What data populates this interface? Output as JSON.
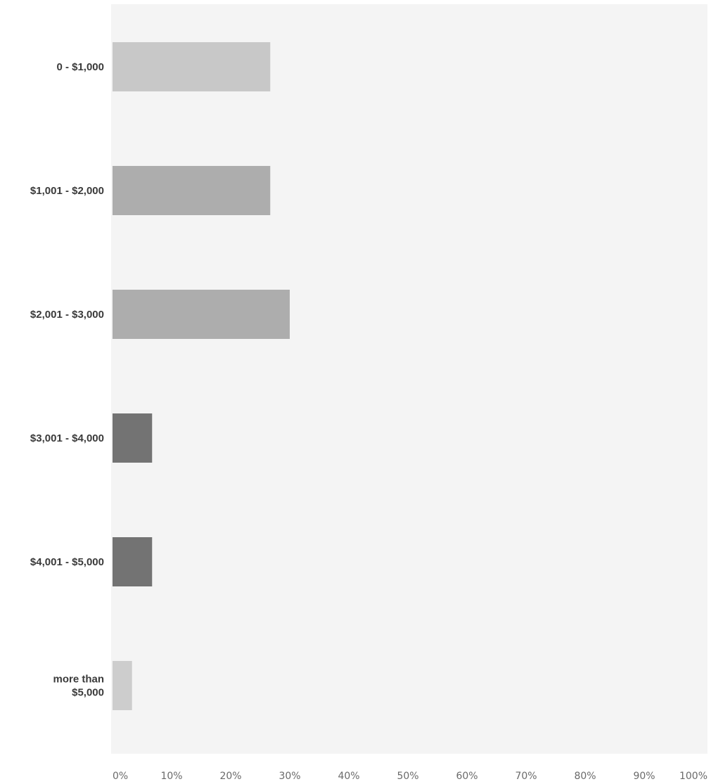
{
  "chart_data": {
    "type": "bar",
    "orientation": "horizontal",
    "title": "",
    "xlabel": "",
    "ylabel": "",
    "categories": [
      [
        "0 - $1,000"
      ],
      [
        "$1,001 - $2,000"
      ],
      [
        "$2,001 - $3,000"
      ],
      [
        "$3,001 - $4,000"
      ],
      [
        "$4,001 - $5,000"
      ],
      [
        "more than",
        "$5,000"
      ]
    ],
    "values": [
      26.7,
      26.7,
      30.0,
      6.7,
      6.7,
      3.3
    ],
    "bar_colors": [
      "#c8c8c8",
      "#adadad",
      "#adadad",
      "#737373",
      "#737373",
      "#cdcdcd"
    ],
    "xlim": [
      0,
      100
    ],
    "xticks": [
      "0%",
      "10%",
      "20%",
      "30%",
      "40%",
      "50%",
      "60%",
      "70%",
      "80%",
      "90%",
      "100%"
    ],
    "plot_background": "#f4f4f4",
    "grid": false,
    "legend": "none"
  }
}
